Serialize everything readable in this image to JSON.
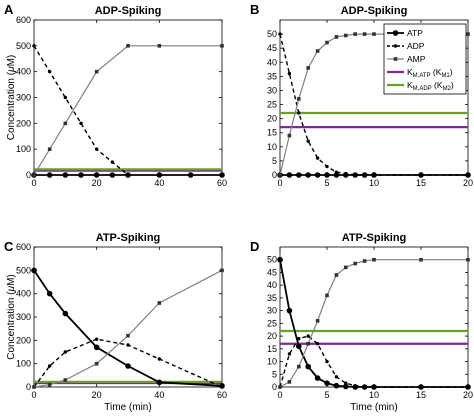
{
  "figure": {
    "ylabel_parts": {
      "pre": "Concentration (",
      "greek": "μ",
      "post": "M)"
    },
    "xlabel": "Time (min)",
    "legend": {
      "placement": "top-right of panel B",
      "entries": [
        {
          "label": "ATP",
          "sub": "",
          "suffix": ""
        },
        {
          "label": "ADP",
          "sub": "",
          "suffix": ""
        },
        {
          "label": "AMP",
          "sub": "",
          "suffix": ""
        },
        {
          "label": "K",
          "sub": "M,ATP",
          "suffix": " (K",
          "suffix_sub": "M1",
          "close": ")"
        },
        {
          "label": "K",
          "sub": "M,ADP",
          "suffix": " (K",
          "suffix_sub": "M2",
          "close": ")"
        }
      ]
    },
    "colors": {
      "atp": "#000000",
      "adp": "#000000",
      "amp": "#808080",
      "km_atp": "#7b2d8e",
      "km_adp": "#6aa121"
    }
  },
  "chart_data": [
    {
      "panel": "A",
      "title": "ADP-Spiking",
      "type": "line",
      "xlim": [
        0,
        60
      ],
      "ylim": [
        0,
        600
      ],
      "xticks": [
        0,
        20,
        40,
        60
      ],
      "yticks": [
        0,
        100,
        200,
        300,
        400,
        500,
        600
      ],
      "show_ylabel": true,
      "show_xlabel": false,
      "series": [
        {
          "key": "atp",
          "x": [
            0,
            5,
            10,
            15,
            20,
            25,
            30,
            40,
            50,
            60
          ],
          "y": [
            0,
            0,
            0,
            0,
            0,
            0,
            0,
            0,
            0,
            0
          ]
        },
        {
          "key": "adp",
          "x": [
            0,
            5,
            10,
            15,
            20,
            25,
            30
          ],
          "y": [
            500,
            400,
            300,
            200,
            100,
            50,
            0
          ]
        },
        {
          "key": "amp",
          "x": [
            0,
            5,
            10,
            20,
            30,
            40,
            60
          ],
          "y": [
            0,
            100,
            200,
            400,
            500,
            500,
            500
          ]
        }
      ],
      "hlines": [
        {
          "key": "km_atp",
          "y": 17
        },
        {
          "key": "km_adp",
          "y": 22
        }
      ]
    },
    {
      "panel": "B",
      "title": "ADP-Spiking",
      "type": "line",
      "xlim": [
        0,
        20
      ],
      "ylim": [
        0,
        55
      ],
      "xticks": [
        0,
        5,
        10,
        15,
        20
      ],
      "yticks": [
        0,
        5,
        10,
        15,
        20,
        25,
        30,
        35,
        40,
        45,
        50
      ],
      "show_ylabel": false,
      "show_xlabel": false,
      "legend": true,
      "series": [
        {
          "key": "atp",
          "x": [
            0,
            1,
            2,
            3,
            4,
            5,
            6,
            7,
            8,
            9,
            10,
            15,
            20
          ],
          "y": [
            0,
            0,
            0,
            0,
            0,
            0,
            0,
            0,
            0,
            0,
            0,
            0,
            0
          ]
        },
        {
          "key": "adp",
          "x": [
            0,
            1,
            2,
            3,
            4,
            5,
            6,
            7,
            8,
            9,
            10,
            15,
            20
          ],
          "y": [
            50,
            36,
            22,
            12,
            6,
            3,
            1,
            0.5,
            0,
            0,
            0,
            0,
            0
          ]
        },
        {
          "key": "amp",
          "x": [
            0,
            1,
            2,
            3,
            4,
            5,
            6,
            7,
            8,
            9,
            10,
            15,
            20
          ],
          "y": [
            0,
            14,
            27,
            38,
            44,
            47,
            49,
            49.5,
            50,
            50,
            50,
            50,
            50
          ]
        }
      ],
      "hlines": [
        {
          "key": "km_atp",
          "y": 17
        },
        {
          "key": "km_adp",
          "y": 22
        }
      ]
    },
    {
      "panel": "C",
      "title": "ATP-Spiking",
      "type": "line",
      "xlim": [
        0,
        60
      ],
      "ylim": [
        0,
        600
      ],
      "xticks": [
        0,
        20,
        40,
        60
      ],
      "yticks": [
        0,
        100,
        200,
        300,
        400,
        500,
        600
      ],
      "show_ylabel": true,
      "show_xlabel": true,
      "series": [
        {
          "key": "atp",
          "x": [
            0,
            5,
            10,
            20,
            30,
            40,
            60
          ],
          "y": [
            500,
            400,
            315,
            170,
            90,
            20,
            5
          ]
        },
        {
          "key": "adp",
          "x": [
            0,
            5,
            10,
            20,
            30,
            40,
            60
          ],
          "y": [
            0,
            90,
            150,
            205,
            180,
            120,
            0
          ]
        },
        {
          "key": "amp",
          "x": [
            0,
            5,
            10,
            20,
            30,
            40,
            60
          ],
          "y": [
            0,
            10,
            30,
            100,
            220,
            360,
            500
          ]
        }
      ],
      "hlines": [
        {
          "key": "km_atp",
          "y": 17
        },
        {
          "key": "km_adp",
          "y": 22
        }
      ]
    },
    {
      "panel": "D",
      "title": "ATP-Spiking",
      "type": "line",
      "xlim": [
        0,
        20
      ],
      "ylim": [
        0,
        55
      ],
      "xticks": [
        0,
        5,
        10,
        15,
        20
      ],
      "yticks": [
        0,
        5,
        10,
        15,
        20,
        25,
        30,
        35,
        40,
        45,
        50
      ],
      "show_ylabel": false,
      "show_xlabel": true,
      "series": [
        {
          "key": "atp",
          "x": [
            0,
            1,
            2,
            3,
            4,
            5,
            6,
            7,
            8,
            9,
            10,
            15,
            20
          ],
          "y": [
            50,
            30,
            16,
            8,
            3.5,
            1.5,
            0.5,
            0.2,
            0,
            0,
            0,
            0,
            0
          ]
        },
        {
          "key": "adp",
          "x": [
            0,
            1,
            2,
            3,
            4,
            5,
            6,
            7,
            8,
            9,
            10,
            15,
            20
          ],
          "y": [
            0,
            13,
            19,
            20,
            17,
            10,
            4,
            1.5,
            0.5,
            0,
            0,
            0,
            0
          ]
        },
        {
          "key": "amp",
          "x": [
            0,
            1,
            2,
            3,
            4,
            5,
            6,
            7,
            8,
            9,
            10,
            15,
            20
          ],
          "y": [
            0,
            2,
            8,
            17,
            26,
            36,
            44,
            47,
            48.5,
            49.5,
            50,
            50,
            50
          ]
        }
      ],
      "hlines": [
        {
          "key": "km_atp",
          "y": 17
        },
        {
          "key": "km_adp",
          "y": 22
        }
      ]
    }
  ]
}
